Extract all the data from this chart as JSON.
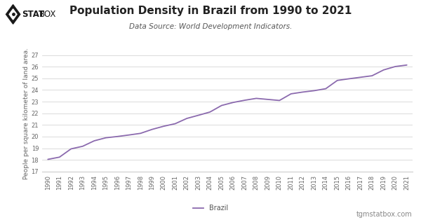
{
  "title": "Population Density in Brazil from 1990 to 2021",
  "subtitle": "Data Source: World Development Indicators.",
  "ylabel": "People per square kilometer of land area.",
  "line_color": "#8B6AAE",
  "background_color": "#ffffff",
  "grid_color": "#cccccc",
  "years": [
    1990,
    1991,
    1992,
    1993,
    1994,
    1995,
    1996,
    1997,
    1998,
    1999,
    2000,
    2001,
    2002,
    2003,
    2004,
    2005,
    2006,
    2007,
    2008,
    2009,
    2010,
    2011,
    2012,
    2013,
    2014,
    2015,
    2016,
    2017,
    2018,
    2019,
    2020,
    2021
  ],
  "values": [
    18.05,
    18.24,
    18.95,
    19.17,
    19.64,
    19.9,
    20.01,
    20.14,
    20.28,
    20.62,
    20.89,
    21.11,
    21.56,
    21.83,
    22.11,
    22.67,
    22.93,
    23.12,
    23.28,
    23.19,
    23.1,
    23.67,
    23.82,
    23.94,
    24.11,
    24.82,
    24.96,
    25.09,
    25.22,
    25.72,
    26.01,
    26.14
  ],
  "ylim": [
    17,
    27
  ],
  "yticks": [
    17,
    18,
    19,
    20,
    21,
    22,
    23,
    24,
    25,
    26,
    27
  ],
  "legend_label": "Brazil",
  "watermark": "tgmstatbox.com",
  "title_fontsize": 11,
  "subtitle_fontsize": 7.5,
  "ylabel_fontsize": 6.5,
  "tick_fontsize": 6,
  "legend_fontsize": 7,
  "watermark_fontsize": 7,
  "line_width": 1.3
}
